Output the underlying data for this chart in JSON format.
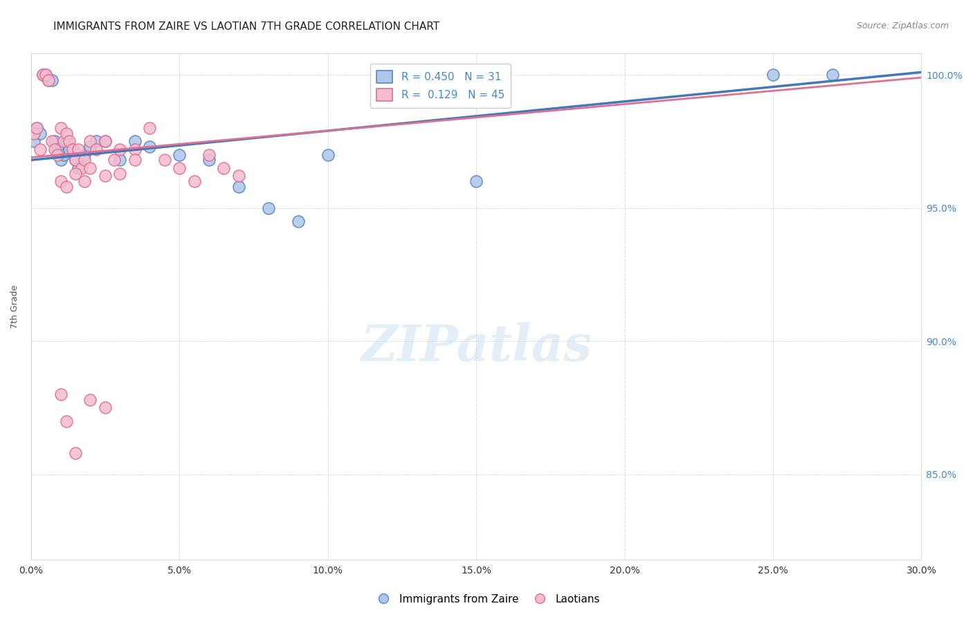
{
  "title": "IMMIGRANTS FROM ZAIRE VS LAOTIAN 7TH GRADE CORRELATION CHART",
  "source": "Source: ZipAtlas.com",
  "xlabel": "",
  "ylabel": "7th Grade",
  "xlim": [
    0.0,
    0.3
  ],
  "ylim": [
    0.818,
    1.008
  ],
  "xticks": [
    0.0,
    0.05,
    0.1,
    0.15,
    0.2,
    0.25,
    0.3
  ],
  "xtick_labels": [
    "0.0%",
    "5.0%",
    "10.0%",
    "15.0%",
    "20.0%",
    "25.0%",
    "30.0%"
  ],
  "yticks": [
    0.85,
    0.9,
    0.95,
    1.0
  ],
  "ytick_labels": [
    "85.0%",
    "90.0%",
    "95.0%",
    "100.0%"
  ],
  "blue_color": "#aec6e8",
  "blue_edge": "#5588cc",
  "pink_color": "#f5bcd0",
  "pink_edge": "#e07090",
  "line_blue": "#4477bb",
  "line_pink": "#e07090",
  "R_blue": 0.45,
  "N_blue": 31,
  "R_pink": 0.129,
  "N_pink": 45,
  "blue_line_x": [
    0.0,
    0.3
  ],
  "blue_line_y": [
    0.968,
    1.001
  ],
  "pink_line_x": [
    0.0,
    0.3
  ],
  "pink_line_y": [
    0.969,
    0.999
  ],
  "blue_scatter_x": [
    0.001,
    0.002,
    0.003,
    0.004,
    0.005,
    0.006,
    0.007,
    0.008,
    0.009,
    0.01,
    0.011,
    0.012,
    0.013,
    0.015,
    0.016,
    0.018,
    0.02,
    0.022,
    0.025,
    0.03,
    0.035,
    0.04,
    0.05,
    0.06,
    0.07,
    0.08,
    0.09,
    0.1,
    0.15,
    0.25,
    0.27
  ],
  "blue_scatter_y": [
    0.975,
    0.98,
    0.978,
    1.0,
    1.0,
    0.998,
    0.998,
    0.975,
    0.972,
    0.968,
    0.97,
    0.975,
    0.972,
    0.968,
    0.965,
    0.97,
    0.973,
    0.975,
    0.975,
    0.968,
    0.975,
    0.973,
    0.97,
    0.968,
    0.958,
    0.95,
    0.945,
    0.97,
    0.96,
    1.0,
    1.0
  ],
  "pink_scatter_x": [
    0.001,
    0.002,
    0.003,
    0.004,
    0.005,
    0.006,
    0.007,
    0.008,
    0.009,
    0.01,
    0.011,
    0.012,
    0.013,
    0.014,
    0.015,
    0.016,
    0.017,
    0.018,
    0.02,
    0.022,
    0.025,
    0.028,
    0.03,
    0.035,
    0.04,
    0.045,
    0.05,
    0.055,
    0.06,
    0.065,
    0.07,
    0.01,
    0.012,
    0.015,
    0.018,
    0.02,
    0.025,
    0.03,
    0.035,
    0.15,
    0.01,
    0.012,
    0.015,
    0.02,
    0.025
  ],
  "pink_scatter_y": [
    0.978,
    0.98,
    0.972,
    1.0,
    1.0,
    0.998,
    0.975,
    0.972,
    0.97,
    0.98,
    0.975,
    0.978,
    0.975,
    0.972,
    0.968,
    0.972,
    0.965,
    0.968,
    0.975,
    0.972,
    0.975,
    0.968,
    0.972,
    0.972,
    0.98,
    0.968,
    0.965,
    0.96,
    0.97,
    0.965,
    0.962,
    0.96,
    0.958,
    0.963,
    0.96,
    0.965,
    0.962,
    0.963,
    0.968,
    0.999,
    0.88,
    0.87,
    0.858,
    0.878,
    0.875
  ]
}
